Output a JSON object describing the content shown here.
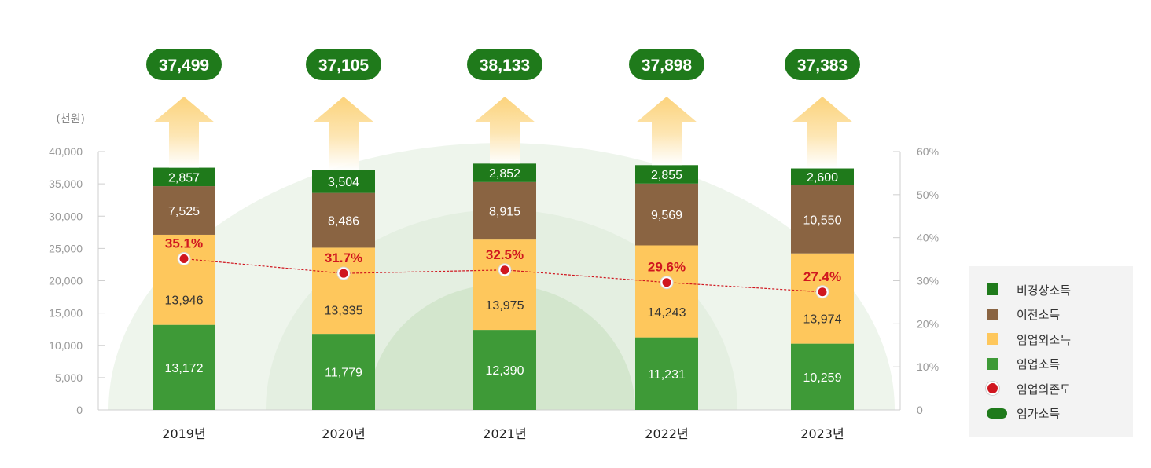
{
  "chart_data": {
    "type": "bar",
    "stacked": true,
    "unit_label": "(천원)",
    "categories": [
      "2019년",
      "2020년",
      "2021년",
      "2022년",
      "2023년"
    ],
    "ylim": [
      0,
      40000
    ],
    "yticks": [
      "0",
      "5,000",
      "10,000",
      "15,000",
      "20,000",
      "25,000",
      "30,000",
      "35,000",
      "40,000"
    ],
    "y2lim": [
      0,
      60
    ],
    "y2ticks": [
      "0",
      "10%",
      "20%",
      "30%",
      "40%",
      "50%",
      "60%"
    ],
    "series": [
      {
        "name": "임업소득",
        "color": "#3e9a37",
        "values": [
          13172,
          11779,
          12390,
          11231,
          10259
        ],
        "labels": [
          "13,172",
          "11,779",
          "12,390",
          "11,231",
          "10,259"
        ]
      },
      {
        "name": "임업외소득",
        "color": "#fec75c",
        "values": [
          13946,
          13335,
          13975,
          14243,
          13974
        ],
        "labels": [
          "13,946",
          "13,335",
          "13,975",
          "14,243",
          "13,974"
        ]
      },
      {
        "name": "이전소득",
        "color": "#8a6442",
        "values": [
          7525,
          8486,
          8915,
          9569,
          10550
        ],
        "labels": [
          "7,525",
          "8,486",
          "8,915",
          "9,569",
          "10,550"
        ]
      },
      {
        "name": "비경상소득",
        "color": "#1f7a1b",
        "values": [
          2857,
          3504,
          2852,
          2855,
          2600
        ],
        "labels": [
          "2,857",
          "3,504",
          "2,852",
          "2,855",
          "2,600"
        ]
      }
    ],
    "line": {
      "name": "임업의존도",
      "axis": "right",
      "color": "#d0161f",
      "values": [
        35.1,
        31.7,
        32.5,
        29.6,
        27.4
      ],
      "labels": [
        "35.1%",
        "31.7%",
        "32.5%",
        "29.6%",
        "27.4%"
      ]
    },
    "totals": {
      "name": "임가소득",
      "color": "#1f7a1b",
      "values": [
        37499,
        37105,
        38133,
        37898,
        37383
      ],
      "labels": [
        "37,499",
        "37,105",
        "38,133",
        "37,898",
        "37,383"
      ]
    },
    "legend": {
      "position": "right",
      "items": [
        {
          "label": "비경상소득",
          "shape": "square",
          "color": "#1f7a1b"
        },
        {
          "label": "이전소득",
          "shape": "square",
          "color": "#8a6442"
        },
        {
          "label": "임업외소득",
          "shape": "square",
          "color": "#fec75c"
        },
        {
          "label": "임업소득",
          "shape": "square",
          "color": "#3e9a37"
        },
        {
          "label": "임업의존도",
          "shape": "dot",
          "color": "#d0161f"
        },
        {
          "label": "임가소득",
          "shape": "pill",
          "color": "#1f7a1b"
        }
      ]
    },
    "grid": false
  }
}
